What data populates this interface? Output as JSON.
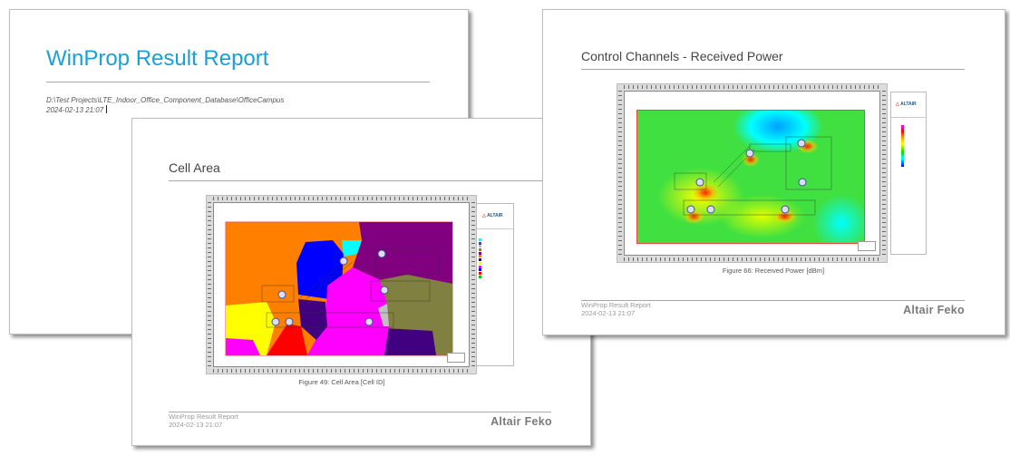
{
  "pages": [
    {
      "title": "WinProp Result Report",
      "project_path": "D:\\Test Projects\\LTE_Indoor_Office_Component_Database\\OfficeCampus",
      "date": "2024-02-13 21:07"
    },
    {
      "title": "Cell Area",
      "figure_caption": "Figure 49: Cell Area [Cell ID]",
      "logo": "ALTAIR",
      "footer_title": "WinProp Result Report",
      "footer_date": "2024-02-13 21:07",
      "footer_brand": "Altair Feko",
      "legend_colors": [
        "#00ffff",
        "#4040c0",
        "#c0c0c0",
        "#808040",
        "#800080",
        "#ff8000",
        "#400080",
        "#ffff00",
        "#ff00ff",
        "#0000ff",
        "#ff0000",
        "#00c000"
      ]
    },
    {
      "title": "Control Channels - Received Power",
      "figure_caption": "Figure 66: Received Power [dBm]",
      "logo": "ALTAIR",
      "footer_title": "WinProp Result Report",
      "footer_date": "2024-02-13 21:07",
      "footer_brand": "Altair Feko"
    }
  ],
  "colors": {
    "title_accent": "#1aa0d8",
    "brand_orange": "#e8542b"
  }
}
